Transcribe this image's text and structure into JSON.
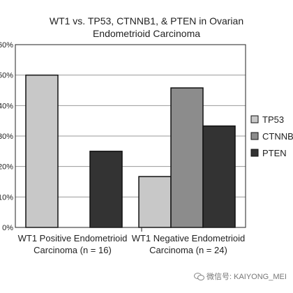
{
  "chart_data": {
    "type": "bar",
    "title_line1": "WT1 vs. TP53, CTNNB1, & PTEN  in Ovarian",
    "title_line2": "Endometrioid Carcinoma",
    "categories_line1": [
      "WT1 Positive Endometrioid",
      "WT1 Negative Endometrioid"
    ],
    "categories_line2": [
      "Carcinoma (n = 16)",
      "Carcinoma (n = 24)"
    ],
    "series": [
      {
        "name": "TP53",
        "values": [
          50.0,
          16.7
        ],
        "color": "#c8c8c8"
      },
      {
        "name": "CTNNB1",
        "values": [
          0,
          45.8
        ],
        "color": "#8c8c8c"
      },
      {
        "name": "PTEN",
        "values": [
          25.0,
          33.3
        ],
        "color": "#333333"
      }
    ],
    "y_ticks": [
      "0%",
      "10%",
      "20%",
      "30%",
      "40%",
      "50%",
      "60%"
    ],
    "ylim": [
      0,
      60
    ],
    "grid": true,
    "legend_position": "right"
  },
  "watermark": {
    "text": "微信号: KAIYONG_MEI",
    "icon": "wechat-icon"
  }
}
